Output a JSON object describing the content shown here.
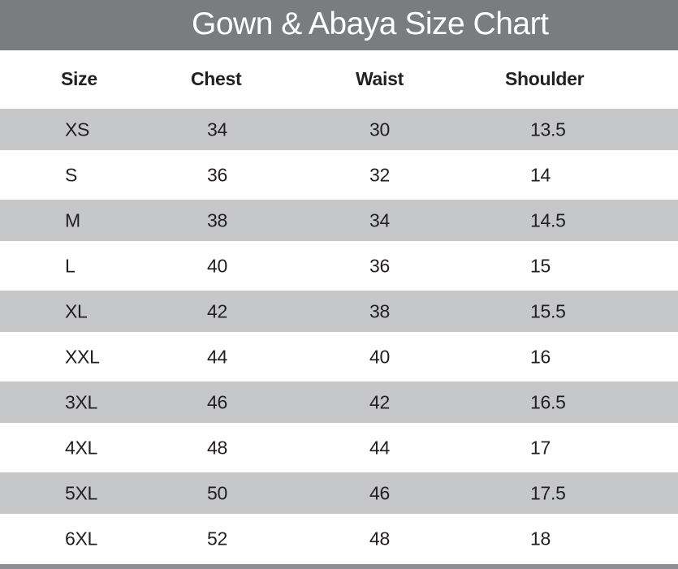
{
  "title": "Gown & Abaya Size Chart",
  "colors": {
    "title_bar": "#7b7c80",
    "stripe": "#c6c7c9",
    "text": "#231f20"
  },
  "columns": [
    "Size",
    "Chest",
    "Waist",
    "Shoulder"
  ],
  "rows": [
    [
      "XS",
      "34",
      "30",
      "13.5"
    ],
    [
      "S",
      "36",
      "32",
      "14"
    ],
    [
      "M",
      "38",
      "34",
      "14.5"
    ],
    [
      "L",
      "40",
      "36",
      "15"
    ],
    [
      "XL",
      "42",
      "38",
      "15.5"
    ],
    [
      "XXL",
      "44",
      "40",
      "16"
    ],
    [
      "3XL",
      "46",
      "42",
      "16.5"
    ],
    [
      "4XL",
      "48",
      "44",
      "17"
    ],
    [
      "5XL",
      "50",
      "46",
      "17.5"
    ],
    [
      "6XL",
      "52",
      "48",
      "18"
    ]
  ]
}
